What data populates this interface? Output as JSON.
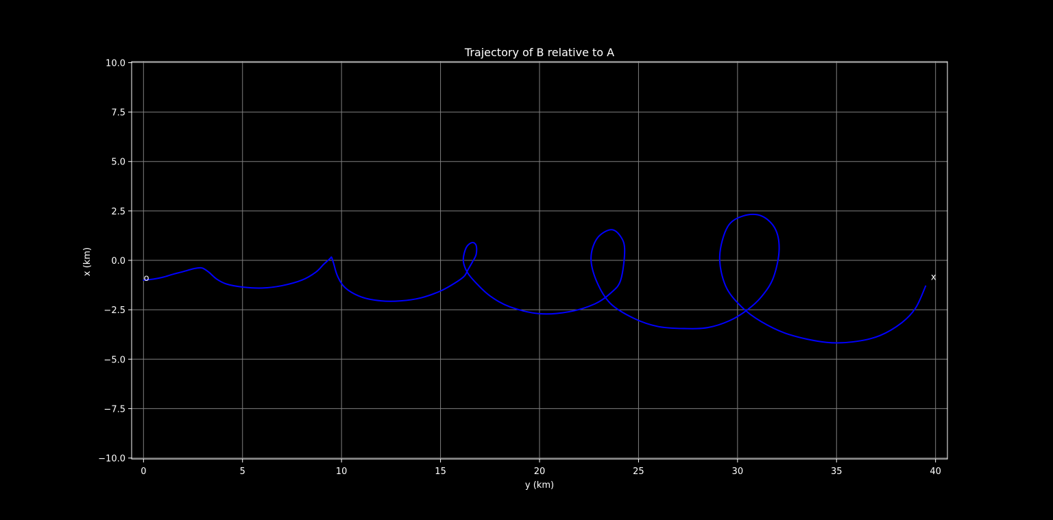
{
  "chart_data": {
    "type": "line",
    "title": "Trajectory of B relative to A",
    "xlabel": "y (km)",
    "ylabel": "x (km)",
    "xlim": [
      -0.6,
      40.6
    ],
    "ylim": [
      -10.05,
      10.05
    ],
    "xticks": [
      0,
      5,
      10,
      15,
      20,
      25,
      30,
      35,
      40
    ],
    "xtick_labels": [
      "0",
      "5",
      "10",
      "15",
      "20",
      "25",
      "30",
      "35",
      "40"
    ],
    "yticks": [
      -10.0,
      -7.5,
      -5.0,
      -2.5,
      0.0,
      2.5,
      5.0,
      7.5,
      10.0
    ],
    "ytick_labels": [
      "−10.0",
      "−7.5",
      "−5.0",
      "−2.5",
      "0.0",
      "2.5",
      "5.0",
      "7.5",
      "10.0"
    ],
    "grid": true,
    "series": [
      {
        "color": "#0000ff",
        "x": [
          0.0,
          0.5,
          1.0,
          1.5,
          2.0,
          2.5,
          2.8,
          3.0,
          3.3,
          3.7,
          4.2,
          5.0,
          6.0,
          7.0,
          8.0,
          8.7,
          9.1,
          9.3,
          9.45,
          9.5,
          9.6,
          9.8,
          10.2,
          11.0,
          12.0,
          13.0,
          14.0,
          15.0,
          15.8,
          16.2,
          16.4,
          16.6,
          16.8,
          16.8,
          16.6,
          16.3,
          16.15,
          16.35,
          16.8,
          17.5,
          18.5,
          20.0,
          21.5,
          22.8,
          23.6,
          24.1,
          24.3,
          24.1,
          23.6,
          22.9,
          22.6,
          22.9,
          23.6,
          24.8,
          26.0,
          27.3,
          28.5,
          29.6,
          30.5,
          31.2,
          31.8,
          32.1,
          31.9,
          31.2,
          30.3,
          29.5,
          29.1,
          29.4,
          30.2,
          31.2,
          32.6,
          34.5,
          36.0,
          37.2,
          38.3,
          39.0,
          39.5
        ],
        "y": [
          -1.0,
          -0.95,
          -0.85,
          -0.7,
          -0.57,
          -0.43,
          -0.38,
          -0.4,
          -0.6,
          -0.95,
          -1.2,
          -1.35,
          -1.4,
          -1.28,
          -1.0,
          -0.6,
          -0.2,
          -0.02,
          0.12,
          0.15,
          -0.15,
          -0.8,
          -1.4,
          -1.85,
          -2.05,
          -2.05,
          -1.9,
          -1.55,
          -1.1,
          -0.8,
          -0.45,
          -0.1,
          0.3,
          0.75,
          0.9,
          0.65,
          0.0,
          -0.6,
          -1.15,
          -1.8,
          -2.35,
          -2.7,
          -2.6,
          -2.2,
          -1.65,
          -1.0,
          0.5,
          1.2,
          1.55,
          1.1,
          0.1,
          -1.1,
          -2.2,
          -2.95,
          -3.35,
          -3.45,
          -3.4,
          -3.05,
          -2.5,
          -1.85,
          -0.9,
          0.5,
          1.6,
          2.25,
          2.25,
          1.7,
          0.2,
          -1.3,
          -2.35,
          -3.1,
          -3.75,
          -4.15,
          -4.1,
          -3.8,
          -3.15,
          -2.4,
          -1.3
        ]
      }
    ],
    "annotations": [
      {
        "text": "o",
        "x": 0.15,
        "y": -0.9
      },
      {
        "text": "x",
        "x": 39.9,
        "y": -0.85
      }
    ]
  }
}
